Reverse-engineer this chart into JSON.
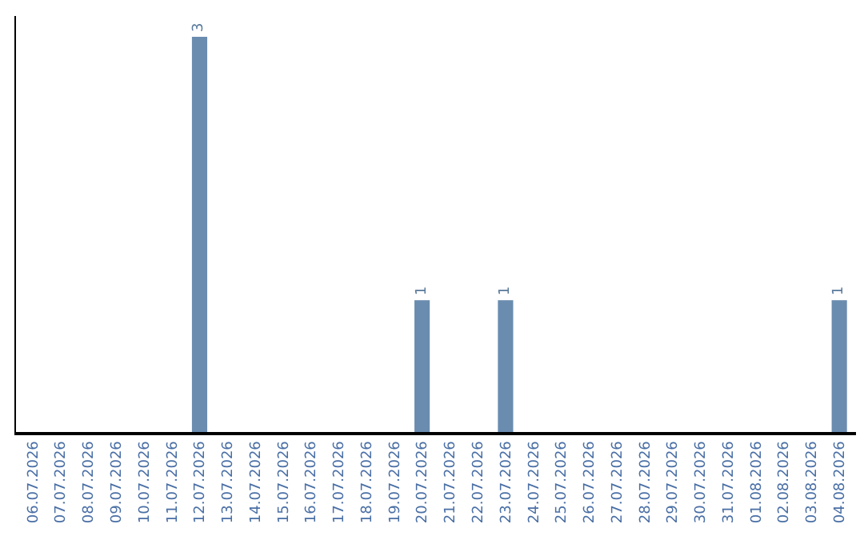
{
  "chart_data": {
    "type": "bar",
    "categories": [
      "06.07.2026",
      "07.07.2026",
      "08.07.2026",
      "09.07.2026",
      "10.07.2026",
      "11.07.2026",
      "12.07.2026",
      "13.07.2026",
      "14.07.2026",
      "15.07.2026",
      "16.07.2026",
      "17.07.2026",
      "18.07.2026",
      "19.07.2026",
      "20.07.2026",
      "21.07.2026",
      "22.07.2026",
      "23.07.2026",
      "24.07.2026",
      "25.07.2026",
      "26.07.2026",
      "27.07.2026",
      "28.07.2026",
      "29.07.2026",
      "30.07.2026",
      "31.07.2026",
      "01.08.2026",
      "02.08.2026",
      "03.08.2026",
      "04.08.2026"
    ],
    "values": [
      0,
      0,
      0,
      0,
      0,
      0,
      3,
      0,
      0,
      0,
      0,
      0,
      0,
      0,
      1,
      0,
      0,
      1,
      0,
      0,
      0,
      0,
      0,
      0,
      0,
      0,
      0,
      0,
      0,
      1
    ],
    "value_labels": [
      null,
      null,
      null,
      null,
      null,
      null,
      "3",
      null,
      null,
      null,
      null,
      null,
      null,
      null,
      "1",
      null,
      null,
      "1",
      null,
      null,
      null,
      null,
      null,
      null,
      null,
      null,
      null,
      null,
      null,
      "1"
    ],
    "color": "#6a8caf",
    "legend": false
  }
}
